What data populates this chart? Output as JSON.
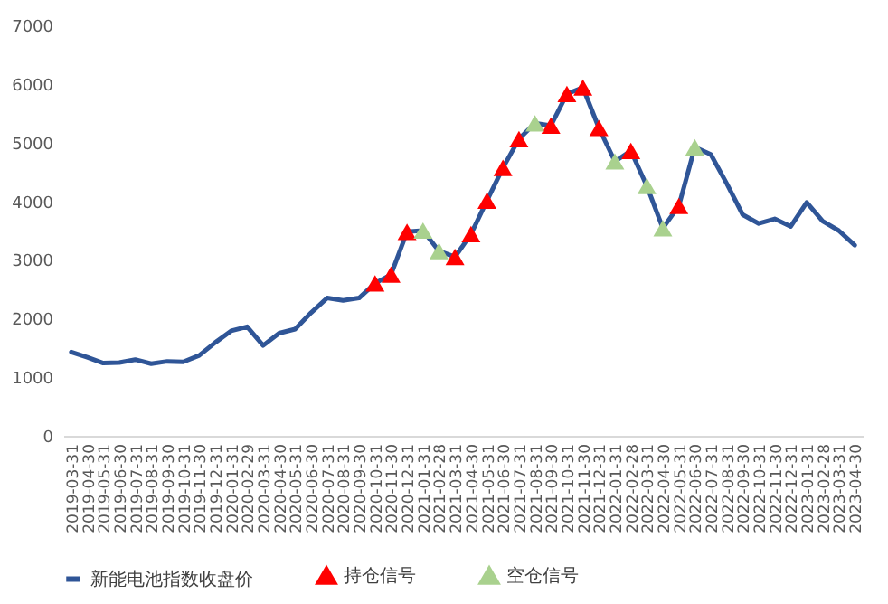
{
  "chart_data": {
    "type": "line",
    "categories": [
      "2019-03-31",
      "2019-04-30",
      "2019-05-31",
      "2019-06-30",
      "2019-07-31",
      "2019-08-31",
      "2019-09-30",
      "2019-10-31",
      "2019-11-30",
      "2019-12-31",
      "2020-01-31",
      "2020-02-29",
      "2020-03-31",
      "2020-04-30",
      "2020-05-31",
      "2020-06-30",
      "2020-07-31",
      "2020-08-31",
      "2020-09-30",
      "2020-10-31",
      "2020-11-30",
      "2020-12-31",
      "2021-01-31",
      "2021-02-28",
      "2021-03-31",
      "2021-04-30",
      "2021-05-31",
      "2021-06-30",
      "2021-07-31",
      "2021-08-31",
      "2021-09-30",
      "2021-10-31",
      "2021-11-30",
      "2021-12-31",
      "2022-01-31",
      "2022-02-28",
      "2022-03-31",
      "2022-04-30",
      "2022-05-31",
      "2022-06-30",
      "2022-07-31",
      "2022-08-31",
      "2022-09-30",
      "2022-10-31",
      "2022-11-30",
      "2022-12-31",
      "2023-01-31",
      "2023-02-28",
      "2023-03-31",
      "2023-04-30"
    ],
    "series": [
      {
        "name": "新能电池指数收盘价",
        "marker": "none",
        "color": "#2f5597",
        "values": [
          1430,
          1340,
          1240,
          1250,
          1300,
          1230,
          1270,
          1260,
          1370,
          1590,
          1790,
          1860,
          1540,
          1750,
          1820,
          2100,
          2350,
          2310,
          2350,
          2600,
          2750,
          3480,
          3500,
          3150,
          3050,
          3440,
          4010,
          4570,
          5060,
          5330,
          5290,
          5830,
          5940,
          5250,
          4680,
          4860,
          4260,
          3540,
          3920,
          4920,
          4800,
          4300,
          3770,
          3620,
          3700,
          3570,
          3980,
          3660,
          3500,
          3250
        ]
      },
      {
        "name": "持仓信号",
        "type": "scatter",
        "marker": "triangle",
        "color": "#ff0000",
        "values": [
          null,
          null,
          null,
          null,
          null,
          null,
          null,
          null,
          null,
          null,
          null,
          null,
          null,
          null,
          null,
          null,
          null,
          null,
          null,
          2600,
          2750,
          3480,
          null,
          null,
          3050,
          3440,
          4010,
          4570,
          5060,
          null,
          5290,
          5830,
          5940,
          5250,
          null,
          4860,
          null,
          null,
          3920,
          null,
          null,
          null,
          null,
          null,
          null,
          null,
          null,
          null,
          null,
          null
        ]
      },
      {
        "name": "空仓信号",
        "type": "scatter",
        "marker": "triangle",
        "color": "#a9d18e",
        "values": [
          null,
          null,
          null,
          null,
          null,
          null,
          null,
          null,
          null,
          null,
          null,
          null,
          null,
          null,
          null,
          null,
          null,
          null,
          null,
          null,
          null,
          null,
          3500,
          3150,
          null,
          null,
          null,
          null,
          null,
          5330,
          null,
          null,
          null,
          null,
          4680,
          null,
          4260,
          3540,
          null,
          4920,
          null,
          null,
          null,
          null,
          null,
          null,
          null,
          null,
          null,
          null
        ]
      }
    ],
    "ylim": [
      0,
      7000
    ],
    "yticks": [
      0,
      1000,
      2000,
      3000,
      4000,
      5000,
      6000,
      7000
    ],
    "grid": false,
    "legend": "bottom"
  }
}
